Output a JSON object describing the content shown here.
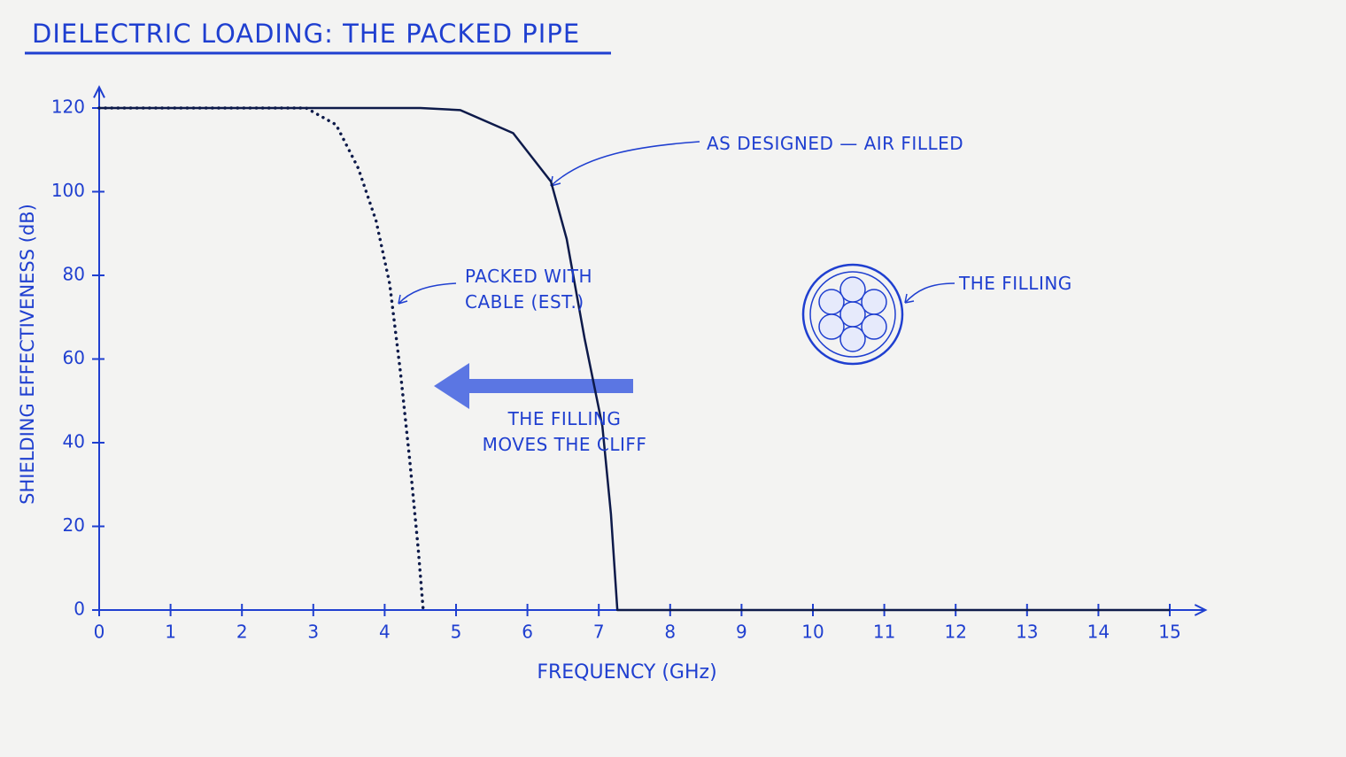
{
  "chart_data": {
    "type": "line",
    "title": "DIELECTRIC LOADING: THE PACKED PIPE",
    "x_label": "FREQUENCY (GHz)",
    "y_label": "SHIELDING EFFECTIVENESS (dB)",
    "xlim": [
      0,
      15.5
    ],
    "ylim": [
      0,
      125
    ],
    "xticks": [
      0,
      1,
      2,
      3,
      4,
      5,
      6,
      7,
      8,
      9,
      10,
      11,
      12,
      13,
      14,
      15
    ],
    "yticks": [
      0,
      20,
      40,
      60,
      80,
      100,
      120
    ],
    "series": [
      {
        "name": "AS DESIGNED — AIR FILLED",
        "color": "#0d1a4a",
        "style": "solid",
        "x": [
          0,
          4.5,
          5.06,
          5.8,
          6.33,
          6.55,
          6.8,
          7.05,
          7.17,
          7.26,
          15
        ],
        "values": [
          120,
          120,
          119.5,
          114,
          102.4,
          88.7,
          65,
          44,
          23,
          0,
          0
        ]
      },
      {
        "name": "PACKED WITH CABLE (EST.)",
        "color": "#0d1a4a",
        "style": "dotted",
        "x": [
          0,
          2.9,
          3.32,
          3.63,
          3.88,
          4.07,
          4.22,
          4.35,
          4.47,
          4.54
        ],
        "values": [
          120,
          120,
          116,
          105.6,
          93,
          78,
          57,
          36,
          14.6,
          0
        ]
      }
    ],
    "annotations": [
      "THE FILLING MOVES THE CLIFF",
      "THE FILLING"
    ]
  }
}
